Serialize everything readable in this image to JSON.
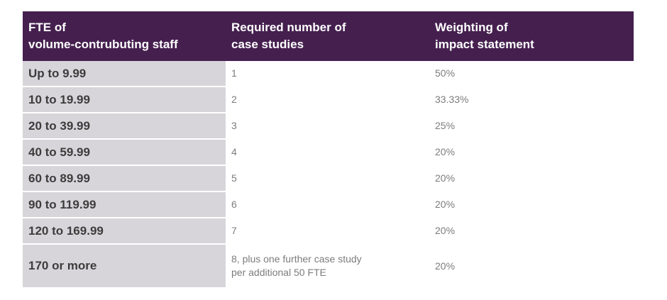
{
  "table": {
    "headers": [
      [
        "FTE of",
        "volume-contrubuting staff"
      ],
      [
        "Required number of",
        "case studies"
      ],
      [
        "Weighting of",
        "impact statement"
      ]
    ],
    "rows": [
      {
        "fte": "Up to 9.99",
        "cases": [
          "1"
        ],
        "weighting": "50%"
      },
      {
        "fte": "10 to 19.99",
        "cases": [
          "2"
        ],
        "weighting": "33.33%"
      },
      {
        "fte": "20 to 39.99",
        "cases": [
          "3"
        ],
        "weighting": "25%"
      },
      {
        "fte": "40 to 59.99",
        "cases": [
          "4"
        ],
        "weighting": "20%"
      },
      {
        "fte": "60 to 89.99",
        "cases": [
          "5"
        ],
        "weighting": "20%"
      },
      {
        "fte": "90 to 119.99",
        "cases": [
          "6"
        ],
        "weighting": "20%"
      },
      {
        "fte": "120 to 169.99",
        "cases": [
          "7"
        ],
        "weighting": "20%"
      },
      {
        "fte": "170 or more",
        "cases": [
          "8, plus one further case study",
          "per additional 50 FTE"
        ],
        "weighting": "20%"
      }
    ]
  },
  "colors": {
    "header_bg": "#45204f",
    "first_col_bg": "#d8d5da"
  }
}
